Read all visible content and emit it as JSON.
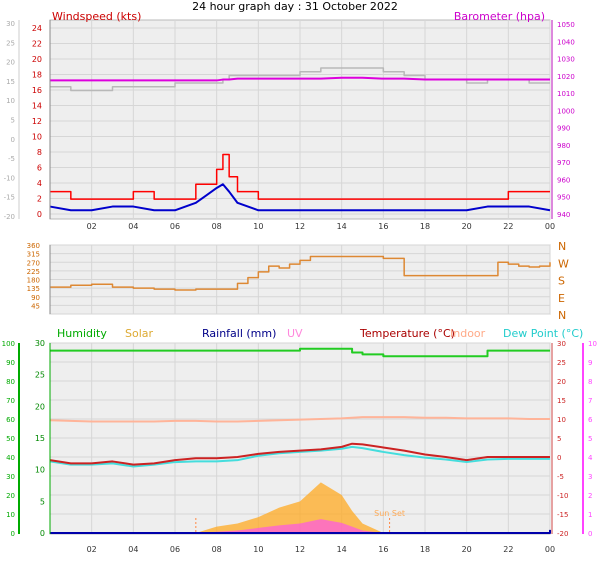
{
  "title": "24 hour graph day : 31 October 2022",
  "x_tick_labels": [
    "02",
    "04",
    "06",
    "08",
    "10",
    "12",
    "14",
    "16",
    "18",
    "20",
    "22",
    "00"
  ],
  "colors": {
    "wind_gust": "#ff0000",
    "wind_avg": "#0000cc",
    "barometer": "#dd00dd",
    "left_axis_green": "#00aa00",
    "humidity": "#22cc22",
    "solar": "#ffaa22",
    "uv": "#ff44ff",
    "rainfall": "#0000aa",
    "temperature": "#cc2222",
    "indoor": "#ffb499",
    "dew_point": "#44dddd",
    "wind_dir": "#dd8833",
    "grey_ref": "#b8b8b8",
    "panel_bg": "#eeeeee"
  },
  "chart_data": [
    {
      "type": "line",
      "panel": "wind",
      "left_label": "Windspeed (kts)",
      "right_label": "Barometer (hpa)",
      "left_ticks": [
        "24",
        "22",
        "20",
        "18",
        "16",
        "14",
        "12",
        "10",
        "8",
        "6",
        "4",
        "2",
        "0"
      ],
      "left_ylim": [
        0,
        25
      ],
      "outer_ticks": [
        "30",
        "25",
        "20",
        "15",
        "10",
        "5",
        "0",
        "-5",
        "-10",
        "-15",
        "-20"
      ],
      "outer_ylim": [
        -20,
        32
      ],
      "right_ticks": [
        "1050",
        "1040",
        "1030",
        "1020",
        "1010",
        "1000",
        "990",
        "980",
        "970",
        "960",
        "950",
        "940"
      ],
      "right_ylim": [
        940,
        1050
      ],
      "x": [
        0.0,
        1.0,
        2.0,
        3.0,
        4.0,
        5.0,
        6.0,
        7.0,
        7.5,
        8.0,
        8.3,
        8.6,
        9.0,
        10.0,
        11.0,
        12.0,
        13.0,
        14.0,
        15.0,
        16.0,
        17.0,
        18.0,
        19.0,
        20.0,
        21.0,
        22.0,
        23.0,
        24.0
      ],
      "series": [
        {
          "name": "gust",
          "values": [
            3,
            2,
            2,
            2,
            3,
            2,
            2,
            4,
            4,
            6,
            8,
            5,
            3,
            2,
            2,
            2,
            2,
            2,
            2,
            2,
            2,
            2,
            2,
            2,
            2,
            3,
            3,
            3
          ]
        },
        {
          "name": "average",
          "values": [
            1,
            0.5,
            0.5,
            1,
            1,
            0.5,
            0.5,
            1.5,
            2.5,
            3.5,
            4,
            3,
            1.5,
            0.5,
            0.5,
            0.5,
            0.5,
            0.5,
            0.5,
            0.5,
            0.5,
            0.5,
            0.5,
            0.5,
            1,
            1,
            1,
            0.5
          ]
        },
        {
          "name": "barometer",
          "values": [
            1018,
            1018,
            1018,
            1018,
            1018,
            1018,
            1018,
            1018,
            1018,
            1018,
            1018.5,
            1018.5,
            1019,
            1019,
            1019,
            1019,
            1019,
            1019.5,
            1019.5,
            1019,
            1019,
            1018.5,
            1018.5,
            1018.5,
            1018.5,
            1018.5,
            1018.5,
            1018.5
          ]
        },
        {
          "name": "grey_reference",
          "values": [
            15,
            14,
            14,
            15,
            15,
            15,
            16,
            16,
            16,
            16,
            17,
            18,
            18,
            18,
            18,
            19,
            20,
            20,
            20,
            19,
            18,
            17,
            17,
            16,
            17,
            17,
            16,
            16
          ]
        }
      ]
    },
    {
      "type": "line",
      "panel": "direction",
      "left_ticks": [
        "360",
        "315",
        "270",
        "225",
        "180",
        "135",
        "90",
        "45"
      ],
      "ylim": [
        0,
        360
      ],
      "right_labels": [
        "N",
        "W",
        "S",
        "E",
        "N"
      ],
      "x": [
        0.0,
        0.5,
        1.0,
        2.0,
        3.0,
        4.0,
        5.0,
        6.0,
        7.0,
        8.0,
        9.0,
        9.5,
        10.0,
        10.5,
        11.0,
        11.5,
        12.0,
        12.5,
        13.0,
        14.0,
        14.5,
        15.0,
        16.0,
        17.0,
        18.0,
        19.0,
        20.0,
        21.0,
        21.5,
        22.0,
        22.5,
        23.0,
        23.5,
        24.0
      ],
      "series": [
        {
          "name": "wind_direction",
          "values": [
            140,
            140,
            150,
            155,
            140,
            135,
            130,
            125,
            130,
            130,
            160,
            190,
            220,
            250,
            240,
            260,
            280,
            300,
            300,
            300,
            300,
            300,
            290,
            200,
            200,
            200,
            200,
            200,
            270,
            260,
            250,
            245,
            250,
            270
          ]
        }
      ]
    },
    {
      "type": "line",
      "panel": "climate",
      "legend": [
        "Humidity",
        "Solar",
        "Rainfall (mm)",
        "UV",
        "Temperature (°C)",
        "Indoor",
        "Dew Point (°C)"
      ],
      "legend_placement": "top",
      "sunset_label": "Sun Set",
      "sunset_time": 16.3,
      "left_ticks": [
        "100",
        "90",
        "80",
        "70",
        "60",
        "50",
        "40",
        "30",
        "20",
        "10",
        "0"
      ],
      "left_ylim": [
        0,
        100
      ],
      "inner_ticks": [
        "30",
        "25",
        "20",
        "15",
        "10",
        "5",
        "0"
      ],
      "inner_ylim": [
        0,
        30
      ],
      "right_ticks": [
        "30",
        "25",
        "20",
        "15",
        "10",
        "5",
        "0",
        "-5",
        "-10",
        "-15",
        "-20"
      ],
      "right_ylim": [
        -20,
        30
      ],
      "uv_ticks": [
        "10",
        "9",
        "8",
        "7",
        "6",
        "5",
        "4",
        "3",
        "2",
        "1",
        "0"
      ],
      "uv_ylim": [
        0,
        10
      ],
      "x": [
        0.0,
        1.0,
        2.0,
        3.0,
        4.0,
        5.0,
        6.0,
        7.0,
        8.0,
        9.0,
        10.0,
        11.0,
        12.0,
        13.0,
        14.0,
        14.5,
        15.0,
        16.0,
        17.0,
        18.0,
        19.0,
        20.0,
        21.0,
        22.0,
        23.0,
        24.0
      ],
      "series": [
        {
          "name": "Humidity",
          "values": [
            96,
            96,
            96,
            96,
            96,
            96,
            96,
            96,
            96,
            96,
            96,
            96,
            97,
            97,
            97,
            95,
            94,
            93,
            93,
            93,
            93,
            93,
            96,
            96,
            96,
            96
          ]
        },
        {
          "name": "Temperature (°C)",
          "values": [
            11.5,
            11,
            11,
            11.3,
            10.8,
            11,
            11.5,
            11.8,
            11.8,
            12,
            12.5,
            12.8,
            13,
            13.2,
            13.6,
            14.1,
            14,
            13.5,
            13,
            12.4,
            12,
            11.5,
            12,
            12,
            12,
            12
          ]
        },
        {
          "name": "Dew Point (°C)",
          "values": [
            11.3,
            10.8,
            10.8,
            11,
            10.5,
            10.8,
            11.2,
            11.3,
            11.3,
            11.5,
            12.2,
            12.6,
            12.8,
            13,
            13.3,
            13.6,
            13.4,
            12.8,
            12.3,
            11.9,
            11.6,
            11.2,
            11.6,
            11.7,
            11.7,
            11.7
          ]
        },
        {
          "name": "Indoor",
          "values": [
            17.8,
            17.7,
            17.6,
            17.6,
            17.6,
            17.6,
            17.7,
            17.7,
            17.6,
            17.6,
            17.7,
            17.8,
            17.9,
            18,
            18.1,
            18.2,
            18.3,
            18.3,
            18.3,
            18.2,
            18.2,
            18.1,
            18.1,
            18.1,
            18,
            18
          ]
        },
        {
          "name": "Solar",
          "values": [
            0,
            0,
            0,
            0,
            0,
            0,
            0,
            0,
            1,
            1.5,
            2.5,
            4,
            5,
            8,
            6,
            3.5,
            1.5,
            0,
            0,
            0,
            0,
            0,
            0,
            0,
            0,
            0
          ]
        },
        {
          "name": "UV",
          "values": [
            0,
            0,
            0,
            0,
            0,
            0,
            0,
            0,
            0.2,
            0.4,
            0.8,
            1.2,
            1.5,
            2.2,
            1.6,
            1.0,
            0.4,
            0,
            0,
            0,
            0,
            0,
            0,
            0,
            0,
            0
          ]
        },
        {
          "name": "Rainfall (mm)",
          "values": [
            0,
            0,
            0,
            0,
            0,
            0,
            0,
            0,
            0,
            0,
            0,
            0,
            0,
            0,
            0,
            0,
            0,
            0,
            0,
            0,
            0,
            0,
            0,
            0,
            0,
            0.5
          ]
        }
      ]
    }
  ]
}
